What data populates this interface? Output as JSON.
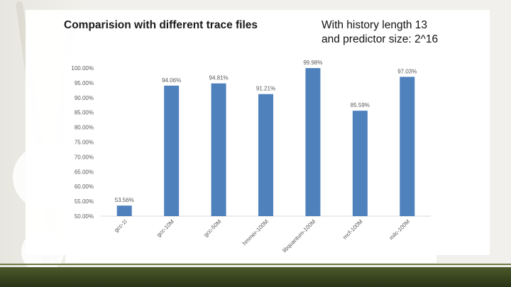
{
  "slide": {
    "left_title": "Comparision with different trace files",
    "right_title_line1": "With history length 13",
    "right_title_line2": "and predictor size: 2^16"
  },
  "chart_data": {
    "type": "bar",
    "categories": [
      "gcc-1l",
      "gcc-10M",
      "gcc-50M",
      "hmmer-100M",
      "libquantum-100M",
      "mcf-100M",
      "milc-100M"
    ],
    "values": [
      53.56,
      94.06,
      94.81,
      91.21,
      99.98,
      85.59,
      97.03
    ],
    "data_labels": [
      "53.56%",
      "94.06%",
      "94.81%",
      "91.21%",
      "99.98%",
      "85.59%",
      "97.03%"
    ],
    "ylim": [
      50,
      100
    ],
    "yticks": [
      "50.00%",
      "55.00%",
      "60.00%",
      "65.00%",
      "70.00%",
      "75.00%",
      "80.00%",
      "85.00%",
      "90.00%",
      "95.00%",
      "100.00%"
    ],
    "title": "",
    "xlabel": "",
    "ylabel": "",
    "grid": false,
    "bar_color": "#4f81bd"
  }
}
